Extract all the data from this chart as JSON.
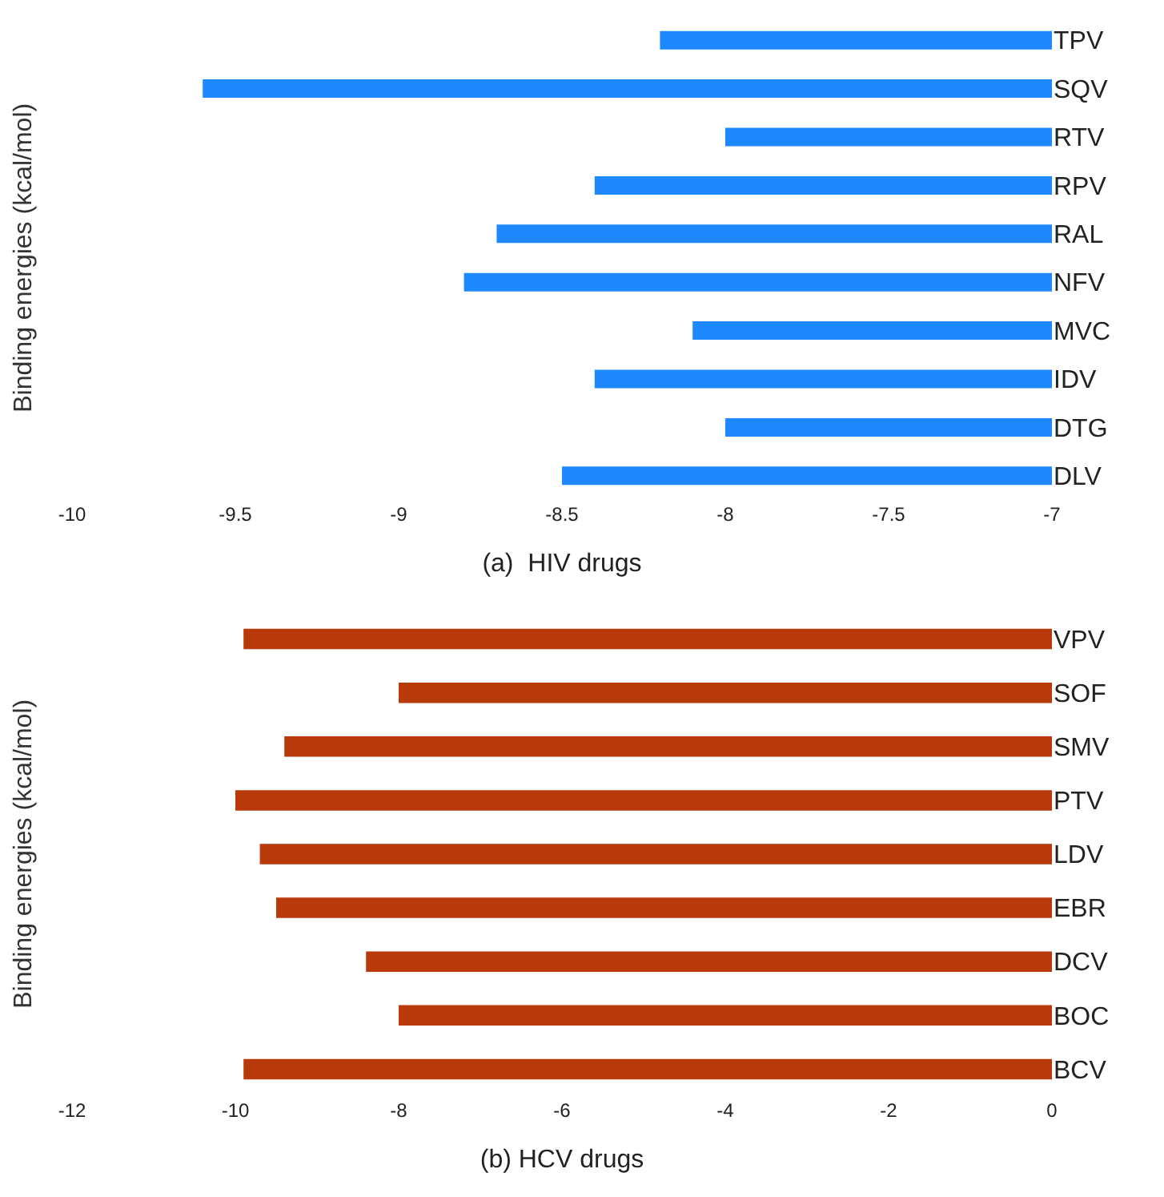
{
  "chart_data": [
    {
      "type": "bar",
      "orientation": "horizontal",
      "xlabel": "(a)  HIV drugs",
      "ylabel": "Binding energies (kcal/mol)",
      "categories": [
        "TPV",
        "SQV",
        "RTV",
        "RPV",
        "RAL",
        "NFV",
        "MVC",
        "IDV",
        "DTG",
        "DLV"
      ],
      "values": [
        -8.2,
        -9.6,
        -8.0,
        -8.4,
        -8.7,
        -8.8,
        -8.1,
        -8.4,
        -8.0,
        -8.5
      ],
      "color": "#1e88ff",
      "xlim": [
        -10,
        -7
      ],
      "xticks": [
        -10,
        -9.5,
        -9,
        -8.5,
        -8,
        -7.5,
        -7
      ],
      "grid": false,
      "legend": false
    },
    {
      "type": "bar",
      "orientation": "horizontal",
      "xlabel": "(b) HCV drugs",
      "ylabel": "Binding energies (kcal/mol)",
      "categories": [
        "VPV",
        "SOF",
        "SMV",
        "PTV",
        "LDV",
        "EBR",
        "DCV",
        "BOC",
        "BCV"
      ],
      "values": [
        -9.9,
        -8.0,
        -9.4,
        -10.0,
        -9.7,
        -9.5,
        -8.4,
        -8.0,
        -9.9
      ],
      "color": "#b83a0a",
      "xlim": [
        -12,
        0
      ],
      "xticks": [
        -12,
        -10,
        -8,
        -6,
        -4,
        -2,
        0
      ],
      "grid": false,
      "legend": false
    }
  ]
}
